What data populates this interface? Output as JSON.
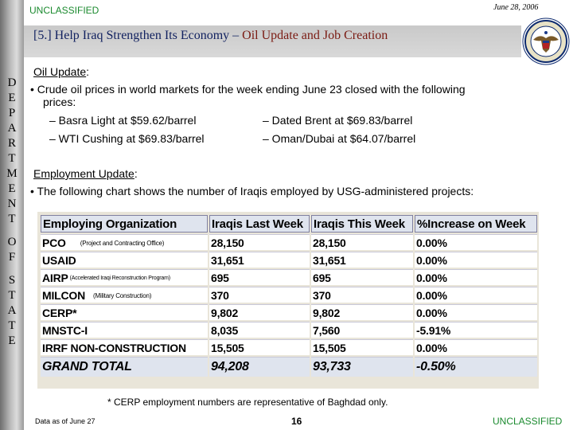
{
  "header": {
    "classification": "UNCLASSIFIED",
    "date": "June 28, 2006",
    "title_prefix": "[5.] Help Iraq Strengthen Its Economy – ",
    "title_highlight": "Oil Update and Job Creation"
  },
  "sidebar": {
    "letters": [
      "D",
      "E",
      "P",
      "A",
      "R",
      "T",
      "M",
      "E",
      "N",
      "T",
      "",
      "O",
      "F",
      "",
      "S",
      "T",
      "A",
      "T",
      "E"
    ]
  },
  "oil": {
    "heading": "Oil Update",
    "heading_suffix": ":",
    "bullet": "• Crude oil prices in world markets for the week ending June 23 closed with the following",
    "bullet_cont": "prices:",
    "prices": [
      "– Basra Light at $59.62/barrel",
      "– Dated Brent at $69.83/barrel",
      "– WTI Cushing at $69.83/barrel",
      "– Oman/Dubai at $64.07/barrel"
    ]
  },
  "employment": {
    "heading": "Employment Update",
    "heading_suffix": ":",
    "bullet": "• The following chart shows the number of Iraqis employed by USG-administered projects:"
  },
  "table": {
    "columns": [
      "Employing Organization",
      "Iraqis Last Week",
      "Iraqis This Week",
      "%Increase on Week"
    ],
    "rows": [
      {
        "org": "PCO",
        "note": "(Project and Contracting Office)",
        "last": "28,150",
        "this": "28,150",
        "pct": "0.00%"
      },
      {
        "org": "USAID",
        "note": "",
        "last": "31,651",
        "this": "31,651",
        "pct": "0.00%"
      },
      {
        "org": "AIRP",
        "note": "(Accelerated Iraqi Reconstruction Program)",
        "last": "695",
        "this": "695",
        "pct": "0.00%"
      },
      {
        "org": "MILCON",
        "note": "(Military Construction)",
        "last": "370",
        "this": "370",
        "pct": "0.00%"
      },
      {
        "org": "CERP*",
        "note": "",
        "last": "9,802",
        "this": "9,802",
        "pct": "0.00%"
      },
      {
        "org": "MNSTC-I",
        "note": "",
        "last": "8,035",
        "this": "7,560",
        "pct": "-5.91%"
      },
      {
        "org": "IRRF NON-CONSTRUCTION",
        "note": "",
        "last": "15,505",
        "this": "15,505",
        "pct": "0.00%"
      }
    ],
    "total": {
      "org": "GRAND TOTAL",
      "last": "94,208",
      "this": "93,733",
      "pct": "-0.50%"
    }
  },
  "footer": {
    "note": "* CERP employment numbers are representative of Baghdad only.",
    "data_as_of": "Data as of June 27",
    "page": "16",
    "classification": "UNCLASSIFIED"
  },
  "colors": {
    "classification": "#1a8a2e",
    "title": "#10205f",
    "title_highlight": "#7a1a12"
  },
  "icons": {
    "seal": "department-of-state-seal"
  }
}
